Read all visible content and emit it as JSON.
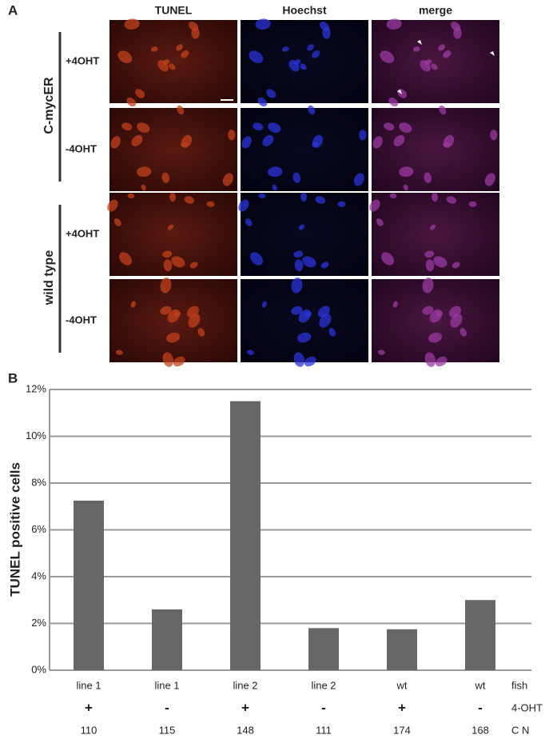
{
  "panel_a": {
    "label": "A",
    "columns": [
      "TUNEL",
      "Hoechst",
      "merge"
    ],
    "groups": [
      {
        "name": "C-mycER",
        "rows": [
          "+4OHT",
          "-4OHT"
        ]
      },
      {
        "name": "wild type",
        "rows": [
          "+4OHT",
          "-4OHT"
        ]
      }
    ]
  },
  "chart_data": {
    "type": "bar",
    "panel_label": "B",
    "y_label": "TUNEL positive cells",
    "categories": [
      "line 1",
      "line 1",
      "line 2",
      "line 2",
      "wt",
      "wt"
    ],
    "category_label": "fish",
    "extra_rows": [
      {
        "label": "4-OHT",
        "values": [
          "+",
          "-",
          "+",
          "-",
          "+",
          "-"
        ]
      },
      {
        "label": "C N",
        "values": [
          110,
          115,
          148,
          111,
          174,
          168
        ]
      }
    ],
    "values": [
      7.25,
      2.6,
      11.5,
      1.8,
      1.75,
      3.0
    ],
    "color": "#666666",
    "ylim": [
      0,
      12
    ],
    "yticks": [
      {
        "value": 0,
        "label": "0%"
      },
      {
        "value": 2,
        "label": "2%"
      },
      {
        "value": 4,
        "label": "4%"
      },
      {
        "value": 6,
        "label": "6%"
      },
      {
        "value": 8,
        "label": "8%"
      },
      {
        "value": 10,
        "label": "10%"
      },
      {
        "value": 12,
        "label": "12%"
      }
    ],
    "grid": true
  }
}
